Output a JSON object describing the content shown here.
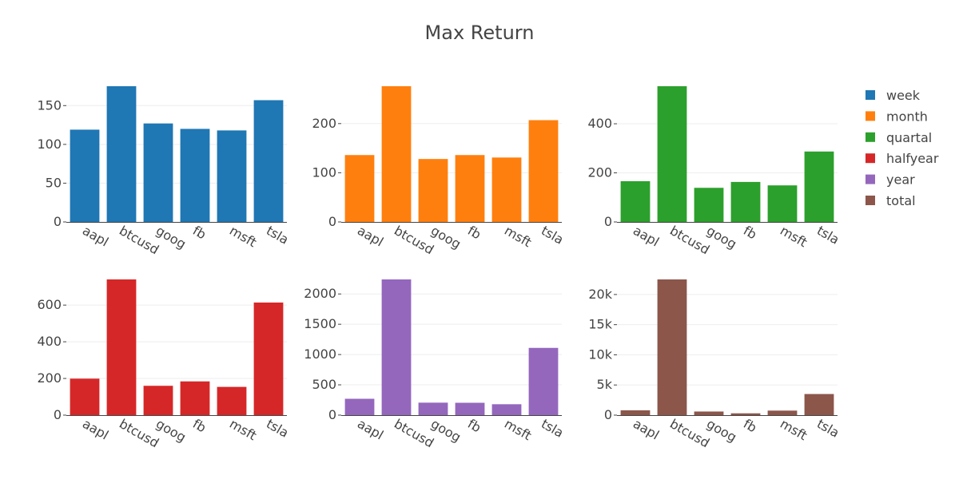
{
  "chart_data": {
    "type": "bar",
    "title": "Max Return",
    "categories": [
      "aapl",
      "btcusd",
      "goog",
      "fb",
      "msft",
      "tsla"
    ],
    "legend_position": "top-right",
    "grid": true,
    "panels": [
      {
        "name": "week",
        "color": "#1f77b4",
        "values": [
          119,
          175,
          127,
          120,
          118,
          157
        ],
        "ylim": [
          0,
          175
        ],
        "ticks": [
          0,
          50,
          100,
          150
        ],
        "tick_labels": [
          "0",
          "50",
          "100",
          "150"
        ]
      },
      {
        "name": "month",
        "color": "#ff7f0e",
        "values": [
          136,
          276,
          128,
          136,
          131,
          207
        ],
        "ylim": [
          0,
          276
        ],
        "ticks": [
          0,
          100,
          200
        ],
        "tick_labels": [
          "0",
          "100",
          "200"
        ]
      },
      {
        "name": "quartal",
        "color": "#2ca02c",
        "values": [
          166,
          553,
          139,
          163,
          149,
          287
        ],
        "ylim": [
          0,
          553
        ],
        "ticks": [
          0,
          200,
          400
        ],
        "tick_labels": [
          "0",
          "200",
          "400"
        ]
      },
      {
        "name": "halfyear",
        "color": "#d62728",
        "values": [
          199,
          740,
          160,
          184,
          154,
          614
        ],
        "ylim": [
          0,
          740
        ],
        "ticks": [
          0,
          200,
          400,
          600
        ],
        "tick_labels": [
          "0",
          "200",
          "400",
          "600"
        ]
      },
      {
        "name": "year",
        "color": "#9467bd",
        "values": [
          270,
          2240,
          206,
          204,
          180,
          1110
        ],
        "ylim": [
          0,
          2240
        ],
        "ticks": [
          0,
          500,
          1000,
          1500,
          2000
        ],
        "tick_labels": [
          "0",
          "500",
          "1000",
          "1500",
          "2000"
        ]
      },
      {
        "name": "total",
        "color": "#8c564b",
        "values": [
          800,
          22500,
          600,
          300,
          750,
          3500
        ],
        "ylim": [
          0,
          22500
        ],
        "ticks": [
          0,
          5000,
          10000,
          15000,
          20000
        ],
        "tick_labels": [
          "0",
          "5k",
          "10k",
          "15k",
          "20k"
        ]
      }
    ]
  }
}
